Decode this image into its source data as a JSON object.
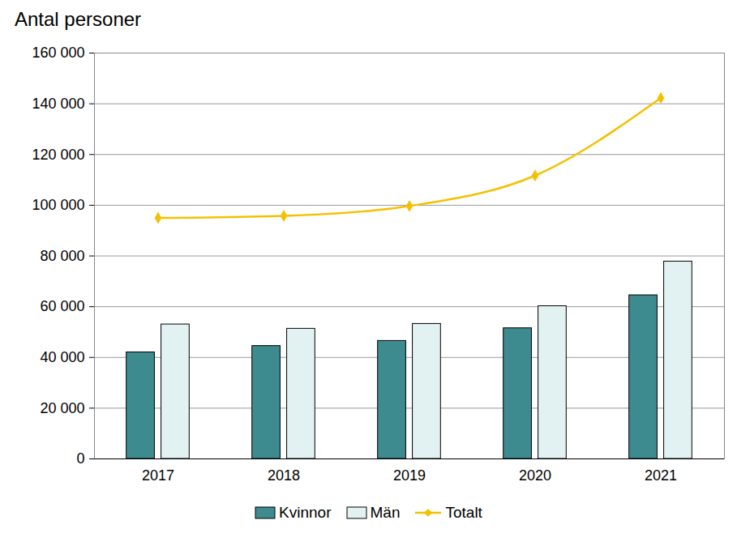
{
  "chart_data": {
    "type": "bar",
    "y_label": "Antal personer",
    "categories": [
      "2017",
      "2018",
      "2019",
      "2020",
      "2021"
    ],
    "series": [
      {
        "name": "Kvinnor",
        "color": "#3d8a8f",
        "values": [
          42000,
          44500,
          46500,
          51500,
          64500
        ]
      },
      {
        "name": "Män",
        "color": "#e2f2f2",
        "values": [
          53000,
          51300,
          53200,
          60200,
          77800
        ]
      },
      {
        "name": "Totalt",
        "type": "line",
        "color": "#f5c000",
        "marker": "diamond",
        "values": [
          95000,
          95800,
          99700,
          111700,
          142300
        ]
      }
    ],
    "ylim": [
      0,
      160000
    ],
    "yticks": [
      0,
      {
        "value": 20000,
        "label": "20 000"
      },
      {
        "value": 40000,
        "label": "40 000"
      },
      {
        "value": 60000,
        "label": "60 000"
      },
      {
        "value": 80000,
        "label": "80 000"
      },
      {
        "value": 100000,
        "label": "100 000"
      },
      {
        "value": 120000,
        "label": "120 000"
      },
      {
        "value": 140000,
        "label": "140 000"
      },
      {
        "value": 160000,
        "label": "160 000"
      }
    ],
    "grid": true,
    "legend": "bottom"
  }
}
